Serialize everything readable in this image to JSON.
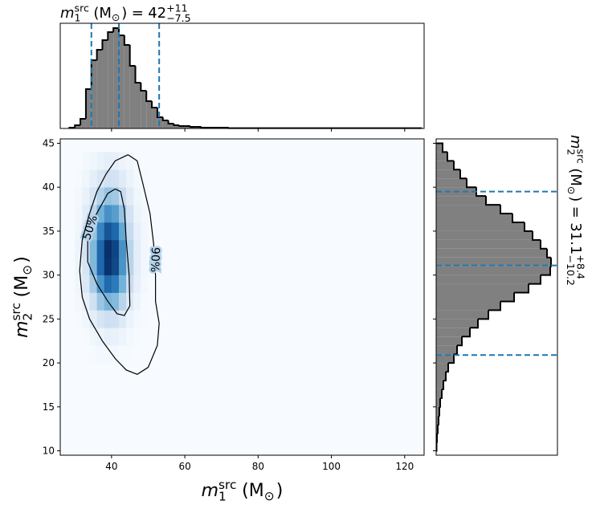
{
  "chart_data": [
    {
      "type": "histogram",
      "orientation": "vertical",
      "parameter": {
        "symbol": "m",
        "subscript": "1",
        "superscript": "src",
        "unit_open": "(M",
        "unit_subscript": "⊙",
        "unit_close": ")"
      },
      "equals": "=",
      "median": 42,
      "upper": {
        "value": 11,
        "label": "+11"
      },
      "lower": {
        "value": -7.5,
        "label": "−7.5"
      },
      "bins": [
        28.5,
        30,
        31.5,
        33,
        34.5,
        36,
        37.5,
        39,
        40.5,
        42,
        43.5,
        45,
        46.5,
        48,
        49.5,
        51,
        52.5,
        54,
        55.5,
        57,
        58.5,
        60,
        61.5,
        63,
        64.5,
        72,
        124.5
      ],
      "counts": [
        1,
        4,
        12,
        49,
        85,
        98,
        110,
        120,
        125,
        116,
        104,
        78,
        57,
        47,
        34,
        26,
        14,
        10,
        6,
        4,
        3,
        3,
        2,
        2,
        1,
        0.4
      ],
      "color": "#808080",
      "edge_color": "#000000",
      "quantiles": [
        34.5,
        42,
        53
      ],
      "quantile_color": "#1f77b4",
      "xlim": [
        26,
        125.3
      ],
      "xticks": [
        40,
        60,
        80,
        100,
        120
      ],
      "ylim": [
        0,
        131
      ]
    },
    {
      "type": "heatmap",
      "colormap": "Blues",
      "x_edges": [
        30,
        32,
        34,
        36,
        38,
        40,
        42,
        44,
        46,
        48,
        50,
        52
      ],
      "y_edges": [
        18,
        20,
        22,
        24,
        26,
        28,
        30,
        32,
        34,
        36,
        38,
        40,
        42,
        44
      ],
      "density": [
        [
          0,
          0,
          0,
          0,
          0,
          0,
          0,
          0,
          0,
          0,
          0
        ],
        [
          0,
          0,
          0.01,
          0.02,
          0.02,
          0.02,
          0.01,
          0.01,
          0,
          0,
          0
        ],
        [
          0,
          0.01,
          0.04,
          0.06,
          0.08,
          0.07,
          0.05,
          0.02,
          0.01,
          0,
          0
        ],
        [
          0.01,
          0.04,
          0.1,
          0.17,
          0.21,
          0.2,
          0.13,
          0.06,
          0.02,
          0.01,
          0
        ],
        [
          0.02,
          0.08,
          0.2,
          0.36,
          0.45,
          0.42,
          0.28,
          0.13,
          0.05,
          0.01,
          0
        ],
        [
          0.04,
          0.14,
          0.33,
          0.59,
          0.75,
          0.69,
          0.46,
          0.22,
          0.08,
          0.02,
          0
        ],
        [
          0.05,
          0.17,
          0.43,
          0.76,
          0.96,
          0.88,
          0.59,
          0.28,
          0.1,
          0.03,
          0
        ],
        [
          0.05,
          0.18,
          0.43,
          0.76,
          0.97,
          0.89,
          0.6,
          0.28,
          0.1,
          0.03,
          0
        ],
        [
          0.04,
          0.15,
          0.37,
          0.65,
          0.83,
          0.76,
          0.51,
          0.24,
          0.08,
          0.03,
          0
        ],
        [
          0.03,
          0.11,
          0.27,
          0.47,
          0.6,
          0.55,
          0.37,
          0.18,
          0.06,
          0.02,
          0
        ],
        [
          0.02,
          0.07,
          0.17,
          0.29,
          0.37,
          0.34,
          0.23,
          0.11,
          0.04,
          0.01,
          0
        ],
        [
          0.01,
          0.04,
          0.09,
          0.15,
          0.2,
          0.18,
          0.12,
          0.06,
          0.02,
          0.01,
          0
        ],
        [
          0,
          0.02,
          0.04,
          0.07,
          0.09,
          0.08,
          0.05,
          0.03,
          0.01,
          0,
          0
        ]
      ],
      "contours": [
        {
          "label": "50%",
          "x": [
            41,
            42.5,
            43.5,
            44,
            44.8,
            45,
            43.5,
            41.5,
            39,
            36,
            33.5,
            33.5,
            35,
            37,
            39,
            41
          ],
          "y": [
            39.8,
            39.5,
            37.5,
            34,
            30,
            26.5,
            25.4,
            25.6,
            27,
            29,
            31.5,
            34.5,
            36.3,
            37.8,
            39.3,
            39.8
          ]
        },
        {
          "label": "90%",
          "x": [
            44.5,
            47,
            48.5,
            50.5,
            51.5,
            52,
            52,
            53,
            52.5,
            50,
            47,
            44,
            41,
            37.5,
            34,
            32,
            31.3,
            32,
            34,
            36,
            38.5,
            41,
            44.5
          ],
          "y": [
            43.7,
            43,
            40.5,
            37,
            33.5,
            30,
            27,
            24.5,
            22,
            19.5,
            18.7,
            19.2,
            20.5,
            22.5,
            25,
            27.5,
            30.5,
            34,
            37,
            39.5,
            41.5,
            43,
            43.7
          ]
        }
      ],
      "contour_color": "#000000",
      "xlim": [
        26,
        125.3
      ],
      "xticks": [
        40,
        60,
        80,
        100,
        120
      ],
      "ylim": [
        9.5,
        45.5
      ],
      "yticks": [
        10,
        15,
        20,
        25,
        30,
        35,
        40,
        45
      ]
    },
    {
      "type": "histogram",
      "orientation": "horizontal",
      "parameter": {
        "symbol": "m",
        "subscript": "2",
        "superscript": "src",
        "unit_open": "(M",
        "unit_subscript": "⊙",
        "unit_close": ")"
      },
      "equals": "=",
      "median": 31.1,
      "upper": {
        "value": 8.4,
        "label": "+8.4"
      },
      "lower": {
        "value": -10.2,
        "label": "−10.2"
      },
      "bins": [
        10,
        11,
        12,
        13,
        14,
        15,
        16,
        17,
        18,
        19,
        20,
        21,
        22,
        23,
        24,
        25,
        26,
        27,
        28,
        29,
        30,
        31,
        32,
        33,
        34,
        35,
        36,
        37,
        38,
        39,
        40,
        41,
        42,
        43,
        44,
        45
      ],
      "counts": [
        0.5,
        1,
        2,
        3,
        4,
        5,
        7,
        9,
        12,
        15,
        22,
        26,
        32,
        42,
        52,
        65,
        80,
        97,
        115,
        130,
        142,
        143,
        138,
        130,
        120,
        110,
        95,
        80,
        62,
        50,
        38,
        30,
        22,
        14,
        8
      ],
      "color": "#808080",
      "edge_color": "#000000",
      "quantiles": [
        20.9,
        31.1,
        39.5
      ],
      "quantile_color": "#1f77b4",
      "ylim": [
        9.5,
        45.5
      ],
      "yticks": [
        10,
        15,
        20,
        25,
        30,
        35,
        40,
        45
      ],
      "xlim": [
        0,
        151
      ]
    }
  ]
}
